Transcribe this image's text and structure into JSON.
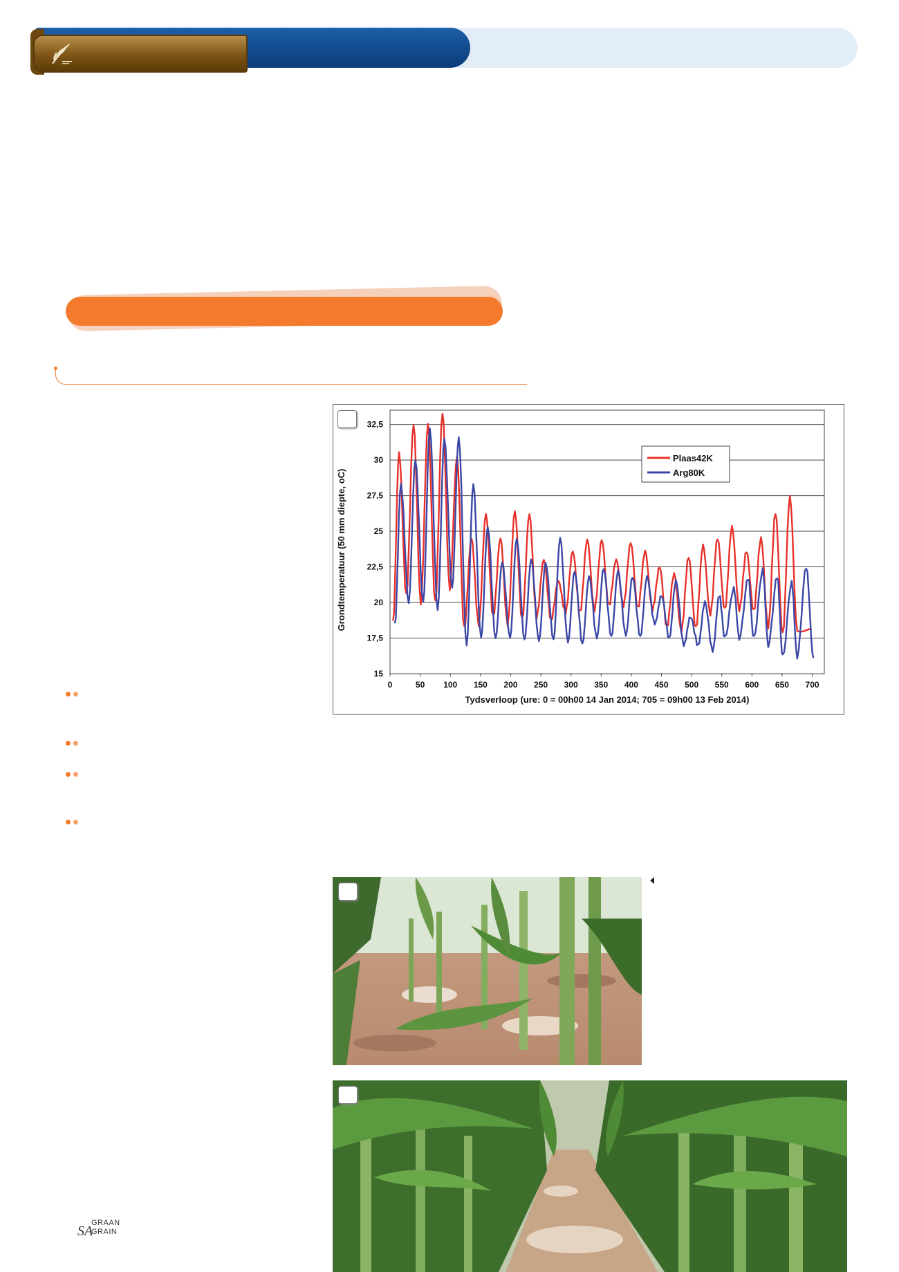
{
  "branding": {
    "header_logo": "wheat-sheaf-icon",
    "footer_logo_prefix": "SA",
    "footer_logo_line1": "GRAAN",
    "footer_logo_line2": "GRAIN",
    "colors": {
      "header_blue": "#0b3b78",
      "header_gold": "#7e5516",
      "accent_orange": "#f47a2e",
      "header_light": "#e3edf8"
    }
  },
  "chart_data": {
    "type": "line",
    "title": "",
    "xlabel": "Tydsverloop (ure: 0 = 00h00 14 Jan 2014; 705 = 09h00 13 Feb 2014)",
    "ylabel": "Grondtemperatuur (50 mm diepte, oC)",
    "xlim": [
      0,
      720
    ],
    "ylim": [
      15,
      33.5
    ],
    "x_ticks": [
      0,
      50,
      100,
      150,
      200,
      250,
      300,
      350,
      400,
      450,
      500,
      550,
      600,
      650,
      700
    ],
    "y_ticks": [
      15,
      17.5,
      20,
      22.5,
      25,
      27.5,
      30,
      32.5
    ],
    "y_tick_labels": [
      "15",
      "17,5",
      "20",
      "22,5",
      "25",
      "27,5",
      "30",
      "32,5"
    ],
    "grid": "horizontal",
    "legend_position": "top-right",
    "series": [
      {
        "name": "Plaas42K",
        "color": "#e8302a",
        "peak_hours": [
          15,
          39,
          63,
          87,
          111,
          135,
          159,
          183,
          207,
          231,
          255,
          279,
          303,
          327,
          351,
          375,
          399,
          423,
          447,
          471,
          495,
          519,
          543,
          567,
          591,
          615,
          639,
          663,
          687
        ],
        "peaks": [
          30.5,
          32.5,
          32.5,
          33.3,
          30.2,
          24.5,
          26.2,
          24.5,
          26.4,
          26.2,
          23,
          21.5,
          23.6,
          24.4,
          24.4,
          23,
          24.2,
          23.6,
          22.5,
          22,
          23.2,
          24,
          24.5,
          25.3,
          23.6,
          24.5,
          26.3,
          27.4,
          null
        ],
        "trough_hours": [
          5,
          27,
          51,
          75,
          99,
          123,
          147,
          171,
          195,
          219,
          243,
          267,
          291,
          315,
          339,
          363,
          387,
          411,
          435,
          459,
          483,
          507,
          531,
          555,
          579,
          603,
          627,
          651,
          675,
          699
        ],
        "troughs": [
          18.6,
          20.5,
          20,
          20,
          21,
          18.2,
          18.5,
          19,
          18.5,
          18.8,
          19,
          18.8,
          19.3,
          19.3,
          19.5,
          19.8,
          19.8,
          19.6,
          19.5,
          18.3,
          18,
          18.2,
          19.2,
          19.5,
          19.5,
          19.4,
          18.3,
          17.8,
          18.1,
          18.1
        ]
      },
      {
        "name": "Arg80K",
        "color": "#3a47a6",
        "peak_hours": [
          18,
          42,
          66,
          90,
          114,
          138,
          162,
          186,
          210,
          234,
          258,
          282,
          306,
          330,
          354,
          378,
          402,
          426,
          450,
          474,
          498,
          522,
          546,
          570,
          594,
          618,
          642,
          666,
          690
        ],
        "peaks": [
          28.3,
          30,
          32.2,
          31.5,
          31.6,
          28.3,
          25.3,
          22.8,
          24.5,
          23,
          22.8,
          24.5,
          22.2,
          21.8,
          22.4,
          22.2,
          21.8,
          21.8,
          20.5,
          21.5,
          19,
          20,
          20.5,
          21,
          21.7,
          22.3,
          21.8,
          21.4,
          22.5
        ],
        "trough_hours": [
          8,
          31,
          55,
          79,
          103,
          127,
          151,
          175,
          199,
          223,
          247,
          271,
          295,
          319,
          343,
          367,
          391,
          415,
          439,
          463,
          487,
          511,
          535,
          555,
          579,
          603,
          627,
          651,
          675,
          702
        ],
        "troughs": [
          18.4,
          20,
          20,
          19.5,
          21,
          17,
          17.5,
          17.5,
          17.5,
          17.4,
          17.3,
          17.4,
          17.2,
          17.1,
          17.5,
          17.6,
          17.7,
          17.6,
          18.5,
          17.5,
          17,
          17,
          16.6,
          17.5,
          17.5,
          17.5,
          17,
          16.2,
          16.2,
          16.1
        ]
      }
    ]
  },
  "figure_markers": {
    "chart": "",
    "photo_a": "",
    "photo_b": ""
  }
}
